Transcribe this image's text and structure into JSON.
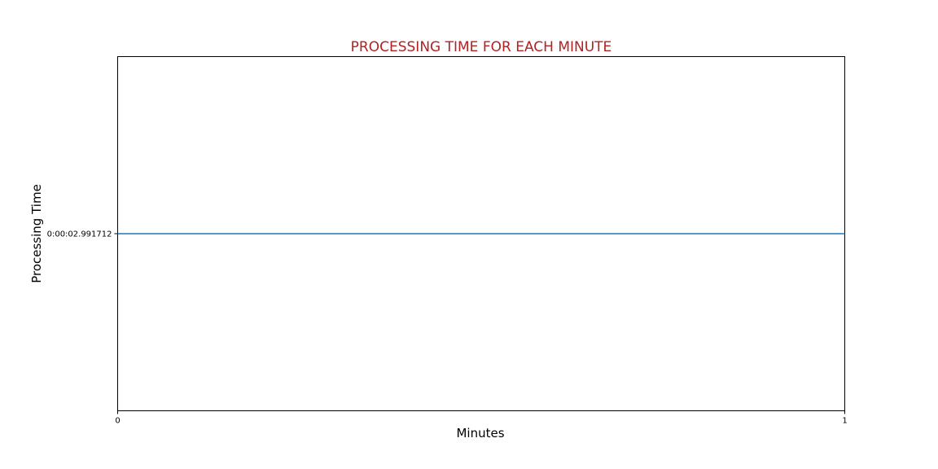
{
  "chart_data": {
    "type": "line",
    "title": "PROCESSING TIME FOR EACH MINUTE",
    "xlabel": "Minutes",
    "ylabel": "Processing Time",
    "x": [
      0,
      1
    ],
    "xlim": [
      0,
      1
    ],
    "xticks": [
      "0",
      "1"
    ],
    "series": [
      {
        "values": [
          2.991712,
          2.991712
        ]
      }
    ],
    "ylim": [
      2.891712,
      3.091712
    ],
    "yticks": [
      {
        "value": 2.991712,
        "label": "0:00:02.991712"
      }
    ],
    "grid": false,
    "legend": "none",
    "colors": {
      "title": "#b22222",
      "line": "#1f77b4",
      "axes": "#000000"
    }
  }
}
